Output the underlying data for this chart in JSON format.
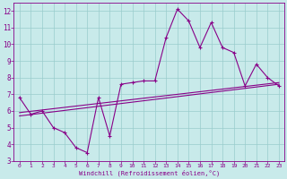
{
  "xlabel": "Windchill (Refroidissement éolien,°C)",
  "xlim": [
    -0.5,
    23.5
  ],
  "ylim": [
    3,
    12.5
  ],
  "yticks": [
    3,
    4,
    5,
    6,
    7,
    8,
    9,
    10,
    11,
    12
  ],
  "xticks": [
    0,
    1,
    2,
    3,
    4,
    5,
    6,
    7,
    8,
    9,
    10,
    11,
    12,
    13,
    14,
    15,
    16,
    17,
    18,
    19,
    20,
    21,
    22,
    23
  ],
  "bg_color": "#c8eaea",
  "line_color": "#880088",
  "grid_color": "#99cccc",
  "main_series_x": [
    0,
    1,
    2,
    3,
    4,
    5,
    6,
    7,
    8,
    9,
    10,
    11,
    12,
    13,
    14,
    15,
    16,
    17,
    18,
    19,
    20,
    21,
    22,
    23
  ],
  "main_series_y": [
    6.8,
    5.8,
    6.0,
    5.0,
    4.7,
    3.8,
    3.5,
    6.8,
    4.5,
    7.6,
    7.7,
    7.8,
    7.8,
    10.4,
    12.1,
    11.4,
    9.8,
    11.3,
    9.8,
    9.5,
    7.5,
    8.8,
    8.0,
    7.5
  ],
  "line1_x": [
    0,
    23
  ],
  "line1_y": [
    5.9,
    7.7
  ],
  "line2_x": [
    0,
    23
  ],
  "line2_y": [
    5.7,
    7.6
  ]
}
